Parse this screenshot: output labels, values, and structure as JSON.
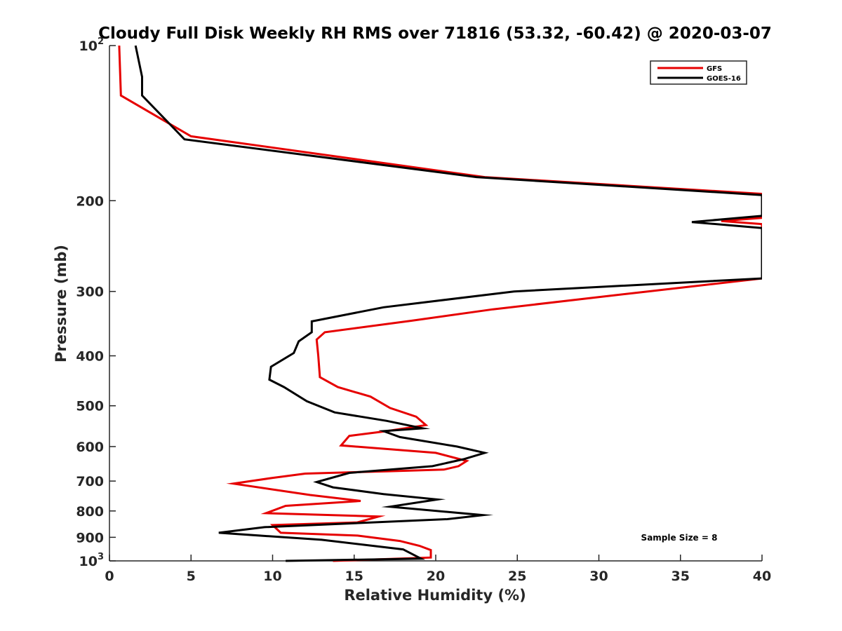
{
  "chart_data": {
    "type": "line",
    "title": "Cloudy Full Disk Weekly RH RMS over 71816 (53.32, -60.42) @ 2020-03-07",
    "xlabel": "Relative Humidity (%)",
    "ylabel": "Pressure (mb)",
    "xlim": [
      0,
      40
    ],
    "ylim": [
      100,
      1000
    ],
    "yscale": "log",
    "y_reversed": true,
    "x_ticks": [
      "0",
      "5",
      "10",
      "15",
      "20",
      "25",
      "30",
      "35",
      "40"
    ],
    "y_ticks": [
      {
        "value": 100,
        "label": "10",
        "sup": "2"
      },
      {
        "value": 200,
        "label": "200",
        "sup": ""
      },
      {
        "value": 300,
        "label": "300",
        "sup": ""
      },
      {
        "value": 400,
        "label": "400",
        "sup": ""
      },
      {
        "value": 500,
        "label": "500",
        "sup": ""
      },
      {
        "value": 600,
        "label": "600",
        "sup": ""
      },
      {
        "value": 700,
        "label": "700",
        "sup": ""
      },
      {
        "value": 800,
        "label": "800",
        "sup": ""
      },
      {
        "value": 900,
        "label": "900",
        "sup": ""
      },
      {
        "value": 1000,
        "label": "10",
        "sup": "3"
      }
    ],
    "grid": false,
    "legend_position": "top-right",
    "annotation": "Sample Size = 8",
    "series": [
      {
        "name": "GFS",
        "color": "#e60000",
        "points": [
          [
            0.6,
            100
          ],
          [
            0.7,
            125
          ],
          [
            5.0,
            150
          ],
          [
            23.0,
            180
          ],
          [
            40.0,
            194
          ],
          [
            40.0,
            216
          ],
          [
            37.5,
            219
          ],
          [
            40.0,
            222
          ],
          [
            40.0,
            283
          ],
          [
            33.0,
            300
          ],
          [
            23.5,
            325
          ],
          [
            18.5,
            342
          ],
          [
            13.2,
            360
          ],
          [
            12.7,
            372
          ],
          [
            12.8,
            400
          ],
          [
            12.9,
            440
          ],
          [
            14.0,
            460
          ],
          [
            16.0,
            480
          ],
          [
            17.2,
            505
          ],
          [
            18.8,
            525
          ],
          [
            19.4,
            545
          ],
          [
            17.0,
            560
          ],
          [
            14.7,
            572
          ],
          [
            14.2,
            597
          ],
          [
            20.0,
            617
          ],
          [
            21.9,
            640
          ],
          [
            21.4,
            655
          ],
          [
            20.5,
            665
          ],
          [
            17.0,
            670
          ],
          [
            12.0,
            677
          ],
          [
            10.0,
            690
          ],
          [
            7.6,
            708
          ],
          [
            12.3,
            745
          ],
          [
            15.4,
            765
          ],
          [
            10.8,
            782
          ],
          [
            9.6,
            808
          ],
          [
            16.5,
            820
          ],
          [
            15.2,
            842
          ],
          [
            10.0,
            852
          ],
          [
            10.5,
            882
          ],
          [
            15.2,
            893
          ],
          [
            17.8,
            915
          ],
          [
            19.0,
            935
          ],
          [
            19.7,
            953
          ],
          [
            19.7,
            985
          ],
          [
            13.7,
            1000
          ]
        ]
      },
      {
        "name": "GOES-16",
        "color": "#000000",
        "points": [
          [
            1.6,
            100
          ],
          [
            2.0,
            115
          ],
          [
            2.0,
            125
          ],
          [
            4.6,
            152
          ],
          [
            22.5,
            180
          ],
          [
            40.0,
            195
          ],
          [
            40.0,
            214
          ],
          [
            35.7,
            220
          ],
          [
            40.0,
            226
          ],
          [
            40.0,
            283
          ],
          [
            24.8,
            300
          ],
          [
            16.8,
            322
          ],
          [
            12.4,
            343
          ],
          [
            12.4,
            360
          ],
          [
            11.6,
            375
          ],
          [
            11.3,
            395
          ],
          [
            9.9,
            420
          ],
          [
            9.8,
            445
          ],
          [
            10.7,
            460
          ],
          [
            12.1,
            490
          ],
          [
            13.8,
            515
          ],
          [
            17.0,
            535
          ],
          [
            19.2,
            553
          ],
          [
            16.8,
            560
          ],
          [
            17.8,
            575
          ],
          [
            21.3,
            600
          ],
          [
            23.0,
            617
          ],
          [
            21.7,
            635
          ],
          [
            19.8,
            655
          ],
          [
            14.7,
            675
          ],
          [
            12.7,
            703
          ],
          [
            13.7,
            720
          ],
          [
            16.8,
            742
          ],
          [
            20.1,
            760
          ],
          [
            17.2,
            785
          ],
          [
            22.9,
            815
          ],
          [
            20.7,
            830
          ],
          [
            9.5,
            860
          ],
          [
            6.7,
            882
          ],
          [
            13.0,
            910
          ],
          [
            18.0,
            950
          ],
          [
            18.5,
            968
          ],
          [
            19.1,
            990
          ],
          [
            10.8,
            1000
          ]
        ]
      }
    ]
  }
}
